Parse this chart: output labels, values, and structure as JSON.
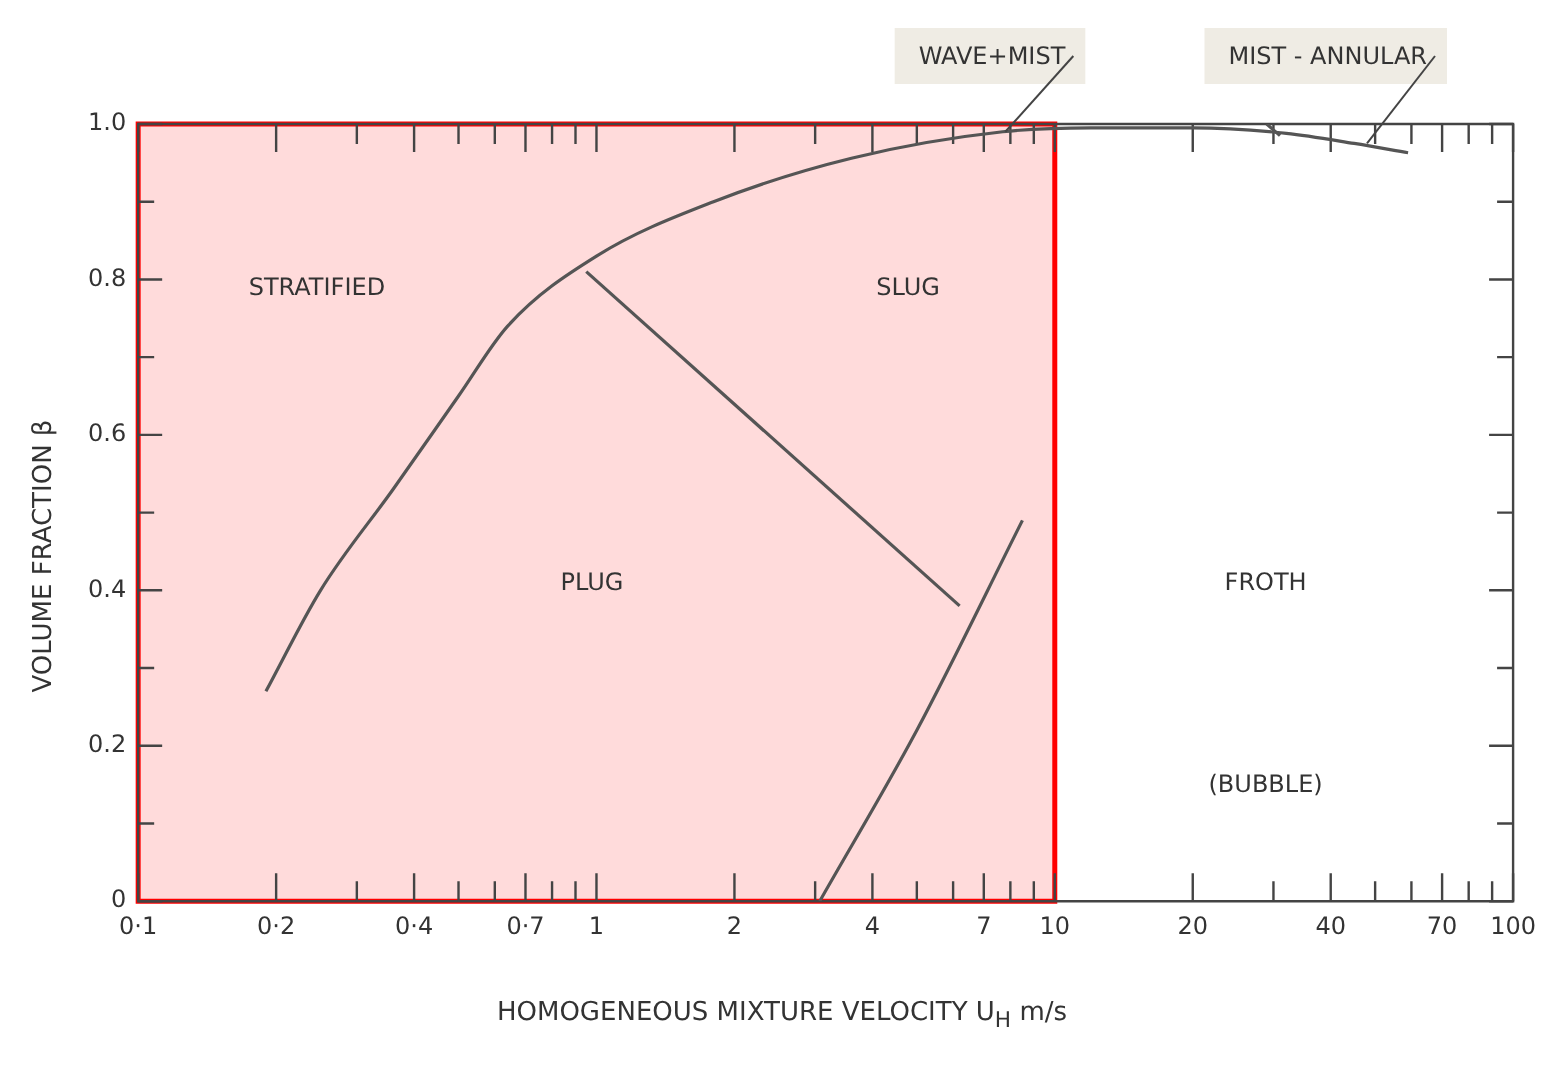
{
  "chart_data": {
    "type": "line",
    "xlabel": "HOMOGENEOUS MIXTURE VELOCITY U$_{H}$ m/s",
    "ylabel": "VOLUME FRACTION β",
    "log": "x",
    "xlim": [
      0.1,
      100
    ],
    "ylim": [
      0,
      1.0
    ],
    "xticks": [
      {
        "value": 0.1,
        "label": "0·1"
      },
      {
        "value": 0.2,
        "label": "0·2"
      },
      {
        "value": 0.3,
        "label": null
      },
      {
        "value": 0.4,
        "label": "0·4"
      },
      {
        "value": 0.5,
        "label": null
      },
      {
        "value": 0.6,
        "label": null
      },
      {
        "value": 0.7,
        "label": "0·7"
      },
      {
        "value": 0.8,
        "label": null
      },
      {
        "value": 0.9,
        "label": null
      },
      1,
      2,
      {
        "value": 3,
        "label": null
      },
      4,
      {
        "value": 5,
        "label": null
      },
      {
        "value": 6,
        "label": null
      },
      7,
      {
        "value": 8,
        "label": null
      },
      {
        "value": 9,
        "label": null
      },
      10,
      20,
      {
        "value": 30,
        "label": null
      },
      40,
      {
        "value": 50,
        "label": null
      },
      {
        "value": 60,
        "label": null
      },
      70,
      {
        "value": 80,
        "label": null
      },
      {
        "value": 90,
        "label": null
      },
      100
    ],
    "yticks": [
      0,
      {
        "value": 0.1,
        "label": null
      },
      0.2,
      {
        "value": 0.3,
        "label": null
      },
      0.4,
      {
        "value": 0.5,
        "label": null
      },
      0.6,
      {
        "value": 0.7,
        "label": null
      },
      0.8,
      {
        "value": 0.9,
        "label": null
      },
      {
        "value": 1,
        "label": "1.0"
      }
    ],
    "grid": false,
    "legend": false,
    "marker": "none",
    "line_style": "solid",
    "series": [
      {
        "color": "#555555",
        "x": [
          0.19,
          0.25,
          0.36,
          0.5,
          0.64,
          1.0,
          1.8,
          3.6,
          7.7,
          12,
          20,
          32,
          45,
          59
        ],
        "values": [
          0.27,
          0.4,
          0.53,
          0.65,
          0.74,
          0.83,
          0.9,
          0.956,
          0.99,
          0.995,
          0.995,
          0.988,
          0.975,
          0.963
        ]
      },
      {
        "color": "#555555",
        "x": [
          0.95,
          6.2
        ],
        "values": [
          0.81,
          0.38
        ]
      },
      {
        "color": "#555555",
        "x": [
          3.07,
          5,
          8.5
        ],
        "values": [
          0,
          0.22,
          0.49
        ]
      },
      {
        "color": "#555555",
        "x": [
          29,
          31
        ],
        "values": [
          1.0,
          0.985
        ]
      }
    ],
    "bands": [
      {
        "axis": "x",
        "from": 0.1,
        "to": 10,
        "color": "#ff0000"
      }
    ],
    "annotations": [
      "STRATIFIED",
      "SLUG",
      "PLUG",
      "FROTH",
      "(BUBBLE)",
      {
        "text": "WAVE+MIST",
        "x": 7.8,
        "y": 0.99
      },
      {
        "text": "MIST - ANNULAR",
        "x": 48,
        "y": 0.975
      }
    ]
  }
}
